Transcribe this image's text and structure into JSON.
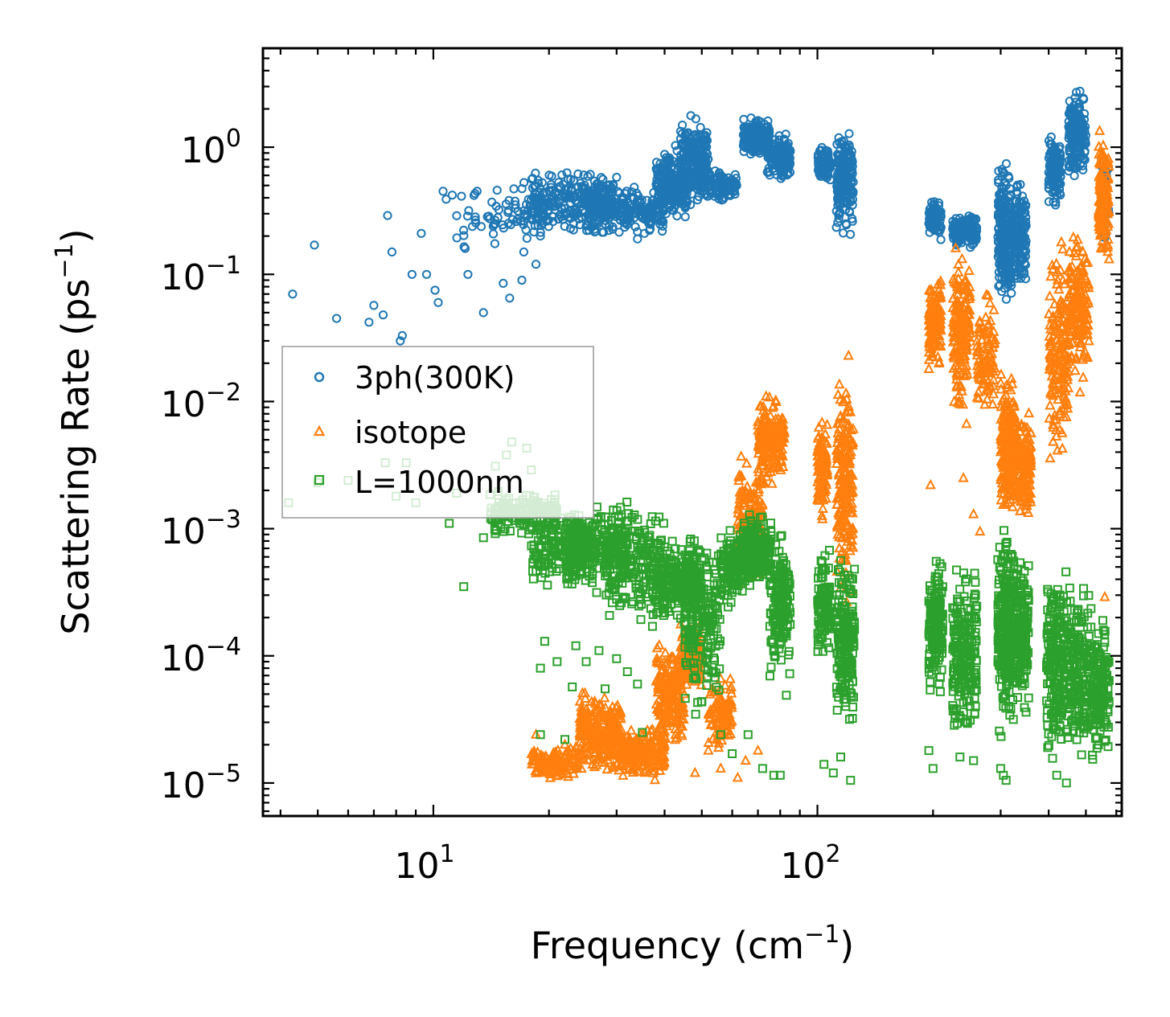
{
  "chart_data": {
    "type": "scatter",
    "xscale": "log",
    "yscale": "log",
    "xlabel": "Frequency",
    "xunit": "cm",
    "xunit_exp": "−1",
    "ylabel": "Scattering Rate",
    "yunit": "ps",
    "yunit_exp": "−1",
    "xlim": [
      3.6,
      620
    ],
    "ylim": [
      5.5e-06,
      6.0
    ],
    "xticks": [
      {
        "base": "10",
        "exp": "1"
      },
      {
        "base": "10",
        "exp": "2"
      }
    ],
    "yticks": [
      {
        "base": "10",
        "exp": "0"
      },
      {
        "base": "10",
        "exp": "−1"
      },
      {
        "base": "10",
        "exp": "−2"
      },
      {
        "base": "10",
        "exp": "−3"
      },
      {
        "base": "10",
        "exp": "−4"
      },
      {
        "base": "10",
        "exp": "−5"
      }
    ],
    "legend_position": "center-left",
    "series": [
      {
        "name": "3ph(300K)",
        "color": "#1f77b4",
        "marker": "circle",
        "points": [
          [
            4.3,
            0.07
          ],
          [
            4.9,
            0.17
          ],
          [
            5.6,
            0.045
          ],
          [
            6.8,
            0.042
          ],
          [
            7.0,
            0.057
          ],
          [
            7.4,
            0.048
          ],
          [
            7.6,
            0.29
          ],
          [
            7.8,
            0.15
          ],
          [
            8.3,
            0.033
          ],
          [
            8.2,
            0.03
          ],
          [
            8.8,
            0.1
          ],
          [
            9.3,
            0.21
          ],
          [
            9.6,
            0.1
          ],
          [
            10.1,
            0.075
          ],
          [
            10.3,
            0.06
          ],
          [
            10.6,
            0.45
          ],
          [
            10.8,
            0.39
          ],
          [
            11.2,
            0.42
          ],
          [
            12.1,
            0.16
          ],
          [
            12.3,
            0.1
          ],
          [
            13.0,
            0.45
          ],
          [
            13.5,
            0.05
          ],
          [
            14.2,
            0.37
          ],
          [
            14.5,
            0.25
          ],
          [
            15.2,
            0.085
          ],
          [
            15.8,
            0.065
          ],
          [
            16.2,
            0.47
          ],
          [
            17.0,
            0.09
          ],
          [
            17.2,
            0.15
          ],
          [
            18.5,
            0.12
          ],
          [
            19.0,
            0.2
          ],
          [
            20.5,
            0.26
          ],
          [
            22.0,
            0.33
          ],
          [
            25.0,
            0.24
          ],
          [
            27.5,
            0.45
          ],
          [
            30.0,
            0.58
          ],
          [
            31.5,
            0.36
          ],
          [
            34.0,
            0.19
          ],
          [
            36.0,
            0.28
          ]
        ],
        "bands": [
          {
            "x": [
              11.5,
              20
            ],
            "y": [
              0.15,
              0.6
            ],
            "n": 80
          },
          {
            "x": [
              18,
              30
            ],
            "y": [
              0.2,
              0.7
            ],
            "n": 260
          },
          {
            "x": [
              25,
              40
            ],
            "y": [
              0.18,
              0.55
            ],
            "n": 240
          },
          {
            "x": [
              38,
              46
            ],
            "y": [
              0.25,
              1.1
            ],
            "n": 220
          },
          {
            "x": [
              44,
              52
            ],
            "y": [
              0.3,
              2.0
            ],
            "n": 220
          },
          {
            "x": [
              50,
              62
            ],
            "y": [
              0.35,
              0.7
            ],
            "n": 110
          },
          {
            "x": [
              64,
              75
            ],
            "y": [
              0.8,
              1.8
            ],
            "n": 170
          },
          {
            "x": [
              74,
              85
            ],
            "y": [
              0.5,
              1.4
            ],
            "n": 170
          },
          {
            "x": [
              100,
              108
            ],
            "y": [
              0.5,
              1.1
            ],
            "n": 90
          },
          {
            "x": [
              112,
              124
            ],
            "y": [
              0.17,
              1.9
            ],
            "n": 170
          },
          {
            "x": [
              195,
              210
            ],
            "y": [
              0.18,
              0.42
            ],
            "n": 90
          },
          {
            "x": [
              225,
              260
            ],
            "y": [
              0.15,
              0.32
            ],
            "n": 140
          },
          {
            "x": [
              295,
              320
            ],
            "y": [
              0.05,
              0.87
            ],
            "n": 260
          },
          {
            "x": [
              325,
              350
            ],
            "y": [
              0.06,
              0.7
            ],
            "n": 140
          },
          {
            "x": [
              400,
              430
            ],
            "y": [
              0.3,
              1.4
            ],
            "n": 130
          },
          {
            "x": [
              450,
              500
            ],
            "y": [
              0.5,
              3.3
            ],
            "n": 180
          },
          {
            "x": [
              545,
              575
            ],
            "y": [
              0.15,
              1.2
            ],
            "n": 50
          }
        ]
      },
      {
        "name": "isotope",
        "color": "#ff7f0e",
        "marker": "triangle",
        "points": [
          [
            18.5,
            2.4e-05
          ],
          [
            20.0,
            1.5e-05
          ],
          [
            22.0,
            2e-05
          ],
          [
            40.0,
            2e-05
          ],
          [
            45.0,
            5e-05
          ],
          [
            48.0,
            1.2e-05
          ],
          [
            52.0,
            1.8e-05
          ],
          [
            56.0,
            1.3e-05
          ],
          [
            62.0,
            1.1e-05
          ],
          [
            65.0,
            1.5e-05
          ],
          [
            70.0,
            1.8e-05
          ],
          [
            195.0,
            0.018
          ],
          [
            197.0,
            0.0022
          ],
          [
            240.0,
            0.0025
          ],
          [
            255.0,
            0.0013
          ],
          [
            265.0,
            0.00095
          ],
          [
            560.0,
            0.00029
          ]
        ],
        "bands": [
          {
            "x": [
              18,
              24
            ],
            "y": [
              1e-05,
              2.2e-05
            ],
            "n": 120
          },
          {
            "x": [
              24,
              31
            ],
            "y": [
              1e-05,
              6e-05
            ],
            "n": 260
          },
          {
            "x": [
              30,
              40
            ],
            "y": [
              1e-05,
              3e-05
            ],
            "n": 200
          },
          {
            "x": [
              38,
              45
            ],
            "y": [
              1.5e-05,
              0.00015
            ],
            "n": 200
          },
          {
            "x": [
              44,
              50
            ],
            "y": [
              5e-05,
              0.0002
            ],
            "n": 150
          },
          {
            "x": [
              52,
              60
            ],
            "y": [
              1.5e-05,
              8e-05
            ],
            "n": 100
          },
          {
            "x": [
              62,
              72
            ],
            "y": [
              0.0003,
              0.004
            ],
            "n": 200
          },
          {
            "x": [
              70,
              82
            ],
            "y": [
              0.002,
              0.012
            ],
            "n": 200
          },
          {
            "x": [
              100,
              106
            ],
            "y": [
              0.001,
              0.01
            ],
            "n": 110
          },
          {
            "x": [
              112,
              124
            ],
            "y": [
              0.0002,
              0.03
            ],
            "n": 200
          },
          {
            "x": [
              195,
              210
            ],
            "y": [
              0.015,
              0.12
            ],
            "n": 120
          },
          {
            "x": [
              225,
              250
            ],
            "y": [
              0.005,
              0.25
            ],
            "n": 160
          },
          {
            "x": [
              260,
              290
            ],
            "y": [
              0.006,
              0.08
            ],
            "n": 100
          },
          {
            "x": [
              300,
              330
            ],
            "y": [
              0.001,
              0.02
            ],
            "n": 220
          },
          {
            "x": [
              335,
              360
            ],
            "y": [
              0.001,
              0.01
            ],
            "n": 130
          },
          {
            "x": [
              400,
              450
            ],
            "y": [
              0.002,
              0.25
            ],
            "n": 160
          },
          {
            "x": [
              450,
              510
            ],
            "y": [
              0.01,
              0.3
            ],
            "n": 160
          },
          {
            "x": [
              540,
              575
            ],
            "y": [
              0.09,
              1.6
            ],
            "n": 140
          }
        ]
      },
      {
        "name": "L=1000nm",
        "color": "#2ca02c",
        "marker": "square",
        "points": [
          [
            4.2,
            0.0016
          ],
          [
            5.0,
            0.0023
          ],
          [
            6.0,
            0.0024
          ],
          [
            7.5,
            0.0033
          ],
          [
            8.0,
            0.0018
          ],
          [
            8.5,
            0.0033
          ],
          [
            9.0,
            0.0016
          ],
          [
            11.0,
            0.0011
          ],
          [
            11.5,
            0.0019
          ],
          [
            12.0,
            0.00035
          ],
          [
            13.5,
            0.00085
          ],
          [
            14.5,
            0.0031
          ],
          [
            15.5,
            0.0038
          ],
          [
            16.0,
            0.0048
          ],
          [
            17.5,
            0.0043
          ],
          [
            18.0,
            0.0029
          ],
          [
            19.0,
            8e-05
          ],
          [
            19.5,
            0.00013
          ],
          [
            21.0,
            9e-05
          ],
          [
            23.0,
            5.7e-05
          ],
          [
            23.5,
            0.00012
          ],
          [
            25.0,
            9e-05
          ],
          [
            27.0,
            0.00011
          ],
          [
            28.0,
            5.5e-05
          ],
          [
            30.0,
            9.5e-05
          ],
          [
            32.0,
            7.5e-05
          ],
          [
            34.0,
            6e-05
          ],
          [
            19.0,
            2.4e-05
          ],
          [
            22.0,
            2.2e-05
          ],
          [
            35.0,
            2.5e-05
          ],
          [
            56.0,
            2.4e-05
          ],
          [
            60.0,
            1.7e-05
          ],
          [
            66.0,
            2.4e-05
          ],
          [
            72.0,
            1.3e-05
          ],
          [
            77.0,
            1.15e-05
          ],
          [
            80.0,
            1.15e-05
          ],
          [
            83.0,
            4.9e-05
          ],
          [
            104.0,
            1.4e-05
          ],
          [
            110.0,
            1.2e-05
          ],
          [
            115.0,
            1.6e-05
          ],
          [
            122.0,
            1.05e-05
          ],
          [
            195.0,
            1.8e-05
          ],
          [
            200.0,
            1.3e-05
          ],
          [
            235.0,
            1.6e-05
          ],
          [
            255.0,
            1.5e-05
          ],
          [
            300.0,
            1.3e-05
          ],
          [
            305.0,
            1.15e-05
          ],
          [
            310.0,
            1.05e-05
          ],
          [
            420.0,
            1.15e-05
          ],
          [
            445.0,
            1e-05
          ]
        ],
        "bands": [
          {
            "x": [
              14,
              21
            ],
            "y": [
              0.0008,
              0.0022
            ],
            "n": 160
          },
          {
            "x": [
              18,
              26
            ],
            "y": [
              0.0003,
              0.0015
            ],
            "n": 170
          },
          {
            "x": [
              22,
              32
            ],
            "y": [
              0.0003,
              0.0018
            ],
            "n": 200
          },
          {
            "x": [
              28,
              40
            ],
            "y": [
              0.00015,
              0.002
            ],
            "n": 220
          },
          {
            "x": [
              38,
              50
            ],
            "y": [
              0.00015,
              0.001
            ],
            "n": 220
          },
          {
            "x": [
              45,
              56
            ],
            "y": [
              3e-05,
              0.0012
            ],
            "n": 200
          },
          {
            "x": [
              56,
              64
            ],
            "y": [
              0.0002,
              0.0012
            ],
            "n": 120
          },
          {
            "x": [
              64,
              76
            ],
            "y": [
              0.0003,
              0.0014
            ],
            "n": 200
          },
          {
            "x": [
              75,
              85
            ],
            "y": [
              5e-05,
              0.0012
            ],
            "n": 150
          },
          {
            "x": [
              100,
              108
            ],
            "y": [
              8e-05,
              0.0008
            ],
            "n": 120
          },
          {
            "x": [
              112,
              125
            ],
            "y": [
              2e-05,
              0.0008
            ],
            "n": 200
          },
          {
            "x": [
              195,
              212
            ],
            "y": [
              4e-05,
              0.0007
            ],
            "n": 150
          },
          {
            "x": [
              225,
              260
            ],
            "y": [
              2e-05,
              0.0006
            ],
            "n": 200
          },
          {
            "x": [
              295,
              325
            ],
            "y": [
              2e-05,
              0.0014
            ],
            "n": 260
          },
          {
            "x": [
              325,
              355
            ],
            "y": [
              3e-05,
              0.0008
            ],
            "n": 160
          },
          {
            "x": [
              395,
              445
            ],
            "y": [
              1e-05,
              0.0008
            ],
            "n": 200
          },
          {
            "x": [
              445,
              520
            ],
            "y": [
              1e-05,
              0.0005
            ],
            "n": 200
          },
          {
            "x": [
              520,
              575
            ],
            "y": [
              1e-05,
              0.0003
            ],
            "n": 140
          }
        ]
      }
    ]
  }
}
